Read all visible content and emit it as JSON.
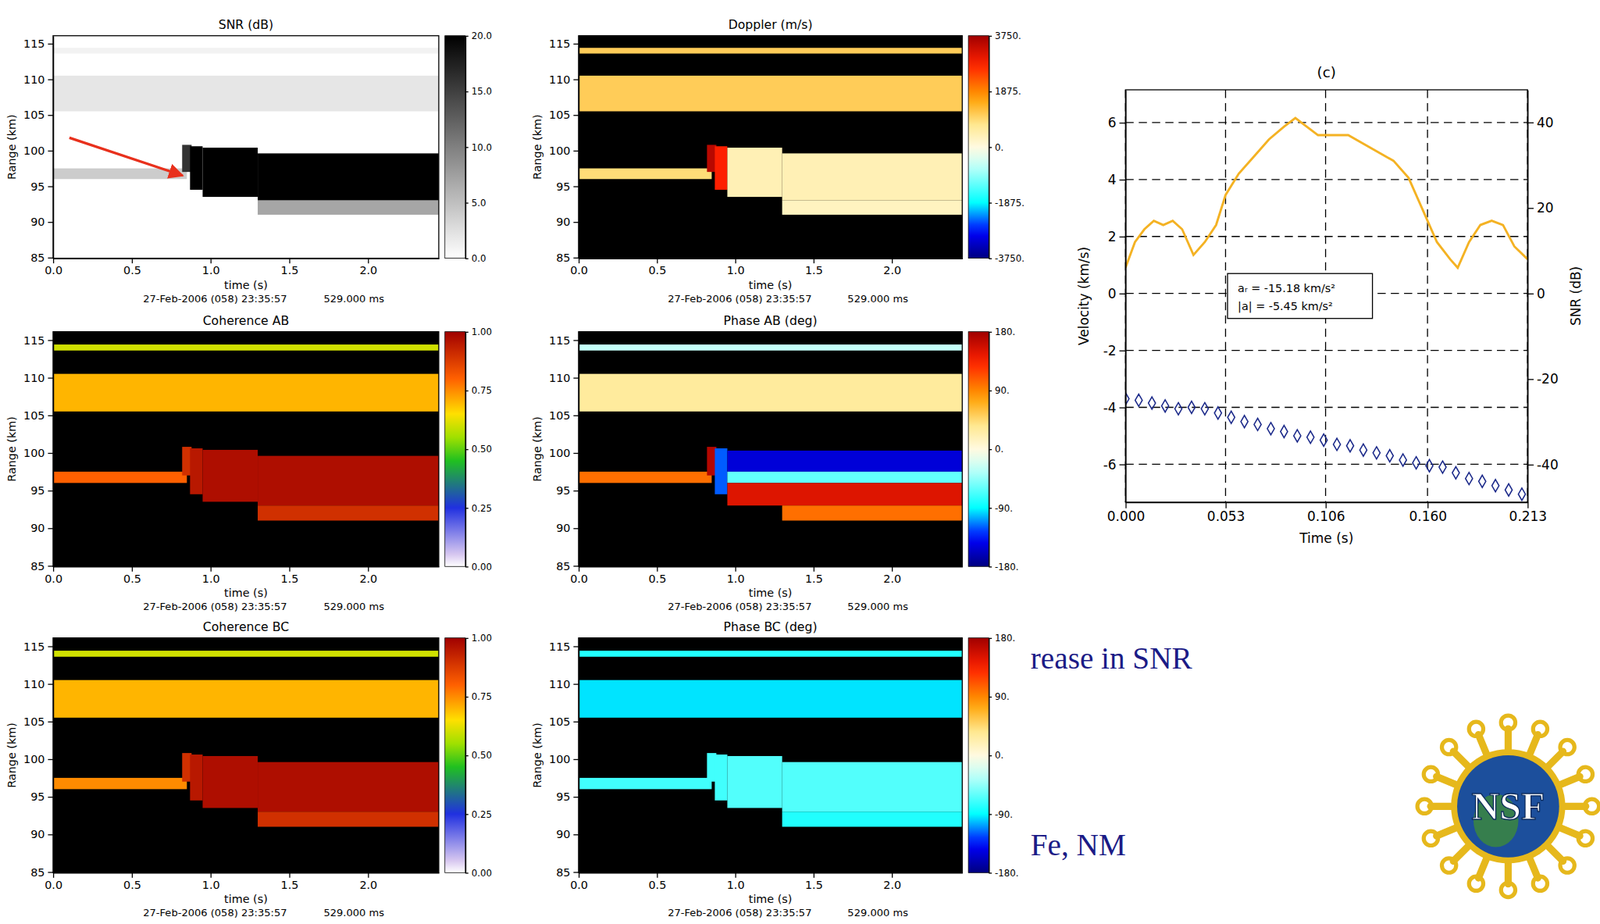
{
  "chart_data": [
    {
      "type": "heatmap",
      "title": "SNR (dB)",
      "xlabel": "time (s)",
      "ylabel": "Range (km)",
      "annotations": [
        "27-Feb-2006 (058) 23:35:57",
        "529.000 ms"
      ],
      "xlim": [
        0,
        2.45
      ],
      "ylim": [
        84.9,
        116.1
      ],
      "xticks": [
        {
          "value": 0,
          "label": "0.0"
        },
        0.5,
        {
          "value": 1,
          "label": "1.0"
        },
        1.5,
        {
          "value": 2,
          "label": "2.0"
        }
      ],
      "yticks": [
        85,
        90,
        95,
        100,
        105,
        110,
        115
      ],
      "color": "grayscale",
      "colorbar": {
        "range": [
          0,
          20
        ],
        "ticks": [
          {
            "value": 20,
            "label": "20.0"
          },
          {
            "value": 15,
            "label": "15.0"
          },
          {
            "value": 10,
            "label": "10.0"
          },
          {
            "value": 5,
            "label": "5.0"
          },
          {
            "value": 0,
            "label": "0.0"
          }
        ]
      },
      "cells": [
        {
          "x": [
            0,
            0.85
          ],
          "y": [
            96,
            97.5
          ],
          "value": 4
        },
        {
          "x": [
            0,
            2.45
          ],
          "y": [
            105.5,
            110.5
          ],
          "value": 2
        },
        {
          "x": [
            0,
            2.45
          ],
          "y": [
            113.6,
            114.4
          ],
          "value": 1
        },
        {
          "x": [
            0.82,
            0.88
          ],
          "y": [
            97,
            100.8
          ],
          "value": 16
        },
        {
          "x": [
            0.87,
            0.95
          ],
          "y": [
            94.5,
            100.6
          ],
          "value": 20
        },
        {
          "x": [
            0.95,
            1.3
          ],
          "y": [
            93.5,
            100.4
          ],
          "value": 20
        },
        {
          "x": [
            1.3,
            2.45
          ],
          "y": [
            93,
            99.6
          ],
          "value": 20
        },
        {
          "x": [
            1.3,
            2.45
          ],
          "y": [
            91,
            93
          ],
          "value": 7
        }
      ]
    },
    {
      "type": "heatmap",
      "title": "Doppler (m/s)",
      "xlabel": "time (s)",
      "ylabel": "Range (km)",
      "annotations": [
        "27-Feb-2006 (058) 23:35:57",
        "529.000 ms"
      ],
      "xlim": [
        0,
        2.45
      ],
      "ylim": [
        84.9,
        116.1
      ],
      "xticks": [
        {
          "value": 0,
          "label": "0.0"
        },
        0.5,
        {
          "value": 1,
          "label": "1.0"
        },
        1.5,
        {
          "value": 2,
          "label": "2.0"
        }
      ],
      "yticks": [
        85,
        90,
        95,
        100,
        105,
        110,
        115
      ],
      "color": "bluered",
      "colorbar": {
        "range": [
          -3750,
          3750
        ],
        "ticks": [
          {
            "value": 3750,
            "label": "3750."
          },
          {
            "value": 1875,
            "label": "1875."
          },
          {
            "value": 0,
            "label": "0."
          },
          {
            "value": -1875,
            "label": "-1875."
          },
          {
            "value": -3750,
            "label": "-3750."
          }
        ]
      },
      "cells": [
        {
          "x": [
            0,
            0.85
          ],
          "y": [
            96,
            97.5
          ],
          "value": 900
        },
        {
          "x": [
            0,
            2.45
          ],
          "y": [
            105.5,
            110.5
          ],
          "value": 1100
        },
        {
          "x": [
            0,
            2.45
          ],
          "y": [
            113.6,
            114.4
          ],
          "value": 1100
        },
        {
          "x": [
            0.82,
            0.88
          ],
          "y": [
            97,
            100.8
          ],
          "value": 3500
        },
        {
          "x": [
            0.87,
            0.95
          ],
          "y": [
            94.5,
            100.6
          ],
          "value": 2800
        },
        {
          "x": [
            0.95,
            1.3
          ],
          "y": [
            93.5,
            100.4
          ],
          "value": 400
        },
        {
          "x": [
            1.3,
            2.45
          ],
          "y": [
            93,
            99.6
          ],
          "value": 400
        },
        {
          "x": [
            1.3,
            2.45
          ],
          "y": [
            91,
            93
          ],
          "value": 300
        }
      ]
    },
    {
      "type": "heatmap",
      "title": "Coherence AB",
      "xlabel": "time (s)",
      "ylabel": "Range (km)",
      "annotations": [
        "27-Feb-2006 (058) 23:35:57",
        "529.000 ms"
      ],
      "xlim": [
        0,
        2.45
      ],
      "ylim": [
        84.9,
        116.1
      ],
      "xticks": [
        {
          "value": 0,
          "label": "0.0"
        },
        0.5,
        {
          "value": 1,
          "label": "1.0"
        },
        1.5,
        {
          "value": 2,
          "label": "2.0"
        }
      ],
      "yticks": [
        85,
        90,
        95,
        100,
        105,
        110,
        115
      ],
      "color": "rainbow",
      "colorbar": {
        "range": [
          0,
          1
        ],
        "ticks": [
          {
            "value": 1,
            "label": "1.00"
          },
          0.75,
          {
            "value": 0.5,
            "label": "0.50"
          },
          0.25,
          {
            "value": 0,
            "label": "0.00"
          }
        ]
      },
      "cells": [
        {
          "x": [
            0,
            0.85
          ],
          "y": [
            96,
            97.5
          ],
          "value": 0.8
        },
        {
          "x": [
            0,
            2.45
          ],
          "y": [
            105.5,
            110.5
          ],
          "value": 0.7
        },
        {
          "x": [
            0,
            2.45
          ],
          "y": [
            113.6,
            114.4
          ],
          "value": 0.6
        },
        {
          "x": [
            0.82,
            0.88
          ],
          "y": [
            97,
            100.8
          ],
          "value": 0.9
        },
        {
          "x": [
            0.87,
            0.95
          ],
          "y": [
            94.5,
            100.6
          ],
          "value": 0.95
        },
        {
          "x": [
            0.95,
            1.3
          ],
          "y": [
            93.5,
            100.4
          ],
          "value": 0.97
        },
        {
          "x": [
            1.3,
            2.45
          ],
          "y": [
            93,
            99.6
          ],
          "value": 0.97
        },
        {
          "x": [
            1.3,
            2.45
          ],
          "y": [
            91,
            93
          ],
          "value": 0.9
        }
      ]
    },
    {
      "type": "heatmap",
      "title": "Phase AB (deg)",
      "xlabel": "time (s)",
      "ylabel": "Range (km)",
      "annotations": [
        "27-Feb-2006 (058) 23:35:57",
        "529.000 ms"
      ],
      "xlim": [
        0,
        2.45
      ],
      "ylim": [
        84.9,
        116.1
      ],
      "xticks": [
        {
          "value": 0,
          "label": "0.0"
        },
        0.5,
        {
          "value": 1,
          "label": "1.0"
        },
        1.5,
        {
          "value": 2,
          "label": "2.0"
        }
      ],
      "yticks": [
        85,
        90,
        95,
        100,
        105,
        110,
        115
      ],
      "color": "bluered",
      "colorbar": {
        "range": [
          -180,
          180
        ],
        "ticks": [
          {
            "value": 180,
            "label": "180."
          },
          {
            "value": 90,
            "label": "90."
          },
          {
            "value": 0,
            "label": "0."
          },
          {
            "value": -90,
            "label": "-90."
          },
          {
            "value": -180,
            "label": "-180."
          }
        ]
      },
      "cells": [
        {
          "x": [
            0,
            0.85
          ],
          "y": [
            96,
            97.5
          ],
          "value": 100
        },
        {
          "x": [
            0,
            2.45
          ],
          "y": [
            105.5,
            110.5
          ],
          "value": 30
        },
        {
          "x": [
            0,
            2.45
          ],
          "y": [
            113.6,
            114.4
          ],
          "value": -30
        },
        {
          "x": [
            0.82,
            0.88
          ],
          "y": [
            97,
            100.8
          ],
          "value": 170
        },
        {
          "x": [
            0.87,
            0.95
          ],
          "y": [
            94.5,
            100.6
          ],
          "value": -120
        },
        {
          "x": [
            0.95,
            2.45
          ],
          "y": [
            97.5,
            100.3
          ],
          "value": -150
        },
        {
          "x": [
            0.95,
            2.45
          ],
          "y": [
            96,
            97.5
          ],
          "value": -60
        },
        {
          "x": [
            0.95,
            2.45
          ],
          "y": [
            93,
            96
          ],
          "value": 150
        },
        {
          "x": [
            1.3,
            2.45
          ],
          "y": [
            91,
            93
          ],
          "value": 100
        }
      ]
    },
    {
      "type": "heatmap",
      "title": "Coherence BC",
      "xlabel": "time (s)",
      "ylabel": "Range (km)",
      "annotations": [
        "27-Feb-2006 (058) 23:35:57",
        "529.000 ms"
      ],
      "xlim": [
        0,
        2.45
      ],
      "ylim": [
        84.9,
        116.1
      ],
      "xticks": [
        {
          "value": 0,
          "label": "0.0"
        },
        0.5,
        {
          "value": 1,
          "label": "1.0"
        },
        1.5,
        {
          "value": 2,
          "label": "2.0"
        }
      ],
      "yticks": [
        85,
        90,
        95,
        100,
        105,
        110,
        115
      ],
      "color": "rainbow",
      "colorbar": {
        "range": [
          0,
          1
        ],
        "ticks": [
          {
            "value": 1,
            "label": "1.00"
          },
          0.75,
          {
            "value": 0.5,
            "label": "0.50"
          },
          0.25,
          {
            "value": 0,
            "label": "0.00"
          }
        ]
      },
      "cells": [
        {
          "x": [
            0,
            0.85
          ],
          "y": [
            96,
            97.5
          ],
          "value": 0.75
        },
        {
          "x": [
            0,
            2.45
          ],
          "y": [
            105.5,
            110.5
          ],
          "value": 0.7
        },
        {
          "x": [
            0,
            2.45
          ],
          "y": [
            113.6,
            114.4
          ],
          "value": 0.6
        },
        {
          "x": [
            0.82,
            0.88
          ],
          "y": [
            97,
            100.8
          ],
          "value": 0.9
        },
        {
          "x": [
            0.87,
            0.95
          ],
          "y": [
            94.5,
            100.6
          ],
          "value": 0.95
        },
        {
          "x": [
            0.95,
            1.3
          ],
          "y": [
            93.5,
            100.4
          ],
          "value": 0.97
        },
        {
          "x": [
            1.3,
            2.45
          ],
          "y": [
            93,
            99.6
          ],
          "value": 0.97
        },
        {
          "x": [
            1.3,
            2.45
          ],
          "y": [
            91,
            93
          ],
          "value": 0.9
        }
      ]
    },
    {
      "type": "heatmap",
      "title": "Phase BC (deg)",
      "xlabel": "time (s)",
      "ylabel": "Range (km)",
      "annotations": [
        "27-Feb-2006 (058) 23:35:57",
        "529.000 ms"
      ],
      "xlim": [
        0,
        2.45
      ],
      "ylim": [
        84.9,
        116.1
      ],
      "xticks": [
        {
          "value": 0,
          "label": "0.0"
        },
        0.5,
        {
          "value": 1,
          "label": "1.0"
        },
        1.5,
        {
          "value": 2,
          "label": "2.0"
        }
      ],
      "yticks": [
        85,
        90,
        95,
        100,
        105,
        110,
        115
      ],
      "color": "bluered",
      "colorbar": {
        "range": [
          -180,
          180
        ],
        "ticks": [
          {
            "value": 180,
            "label": "180."
          },
          {
            "value": 90,
            "label": "90."
          },
          {
            "value": 0,
            "label": "0."
          },
          {
            "value": -90,
            "label": "-90."
          },
          {
            "value": -180,
            "label": "-180."
          }
        ]
      },
      "cells": [
        {
          "x": [
            0,
            0.85
          ],
          "y": [
            96,
            97.5
          ],
          "value": -70
        },
        {
          "x": [
            0,
            2.45
          ],
          "y": [
            105.5,
            110.5
          ],
          "value": -95
        },
        {
          "x": [
            0,
            2.45
          ],
          "y": [
            113.6,
            114.4
          ],
          "value": -80
        },
        {
          "x": [
            0.82,
            0.88
          ],
          "y": [
            97,
            100.8
          ],
          "value": -70
        },
        {
          "x": [
            0.87,
            0.95
          ],
          "y": [
            94.5,
            100.6
          ],
          "value": -70
        },
        {
          "x": [
            0.95,
            1.3
          ],
          "y": [
            93.5,
            100.4
          ],
          "value": -65
        },
        {
          "x": [
            1.3,
            2.45
          ],
          "y": [
            93,
            99.6
          ],
          "value": -65
        },
        {
          "x": [
            1.3,
            2.45
          ],
          "y": [
            91,
            93
          ],
          "value": -80
        }
      ]
    },
    {
      "type": "line",
      "title": "(c)",
      "xlabel": "Time (s)",
      "ylabel": "Velocity (km/s)",
      "y2label": "SNR (dB)",
      "annotations": [
        "aᵣ = -15.18 km/s²",
        "|a| = -5.45 km/s²"
      ],
      "xlim": [
        0,
        0.213
      ],
      "ylim": [
        -7.33,
        7.15
      ],
      "y2lim": [
        -48.8,
        47.6
      ],
      "xticks": [
        {
          "value": 0,
          "label": "0.000"
        },
        0.053,
        0.106,
        {
          "value": 0.16,
          "label": "0.160"
        },
        0.213
      ],
      "yticks": [
        -6,
        -4,
        -2,
        0,
        2,
        4,
        6
      ],
      "y2ticks": [
        -40,
        -20,
        0,
        20,
        40
      ],
      "grid": true,
      "series": [
        {
          "type": "scatter",
          "marker": "diamond",
          "color": "#1c2a8a",
          "x": [
            0,
            0.007,
            0.014,
            0.021,
            0.028,
            0.035,
            0.042,
            0.049,
            0.056,
            0.063,
            0.07,
            0.077,
            0.084,
            0.091,
            0.098,
            0.105,
            0.112,
            0.119,
            0.126,
            0.133,
            0.14,
            0.147,
            0.154,
            0.161,
            0.168,
            0.175,
            0.182,
            0.189,
            0.196,
            0.203,
            0.21
          ],
          "values": [
            -3.7,
            -3.75,
            -3.85,
            -3.95,
            -4.05,
            -4.0,
            -4.05,
            -4.2,
            -4.35,
            -4.5,
            -4.6,
            -4.75,
            -4.85,
            -5.0,
            -5.05,
            -5.15,
            -5.3,
            -5.35,
            -5.5,
            -5.6,
            -5.7,
            -5.85,
            -5.95,
            -6.05,
            -6.1,
            -6.3,
            -6.5,
            -6.6,
            -6.75,
            -6.9,
            -7.05
          ]
        },
        {
          "type": "line",
          "axis": "y2",
          "color": "#f4b223",
          "x": [
            0,
            0.005,
            0.01,
            0.015,
            0.02,
            0.025,
            0.03,
            0.036,
            0.042,
            0.048,
            0.053,
            0.06,
            0.068,
            0.076,
            0.084,
            0.09,
            0.096,
            0.102,
            0.11,
            0.118,
            0.126,
            0.134,
            0.142,
            0.15,
            0.158,
            0.165,
            0.172,
            0.176,
            0.182,
            0.188,
            0.194,
            0.2,
            0.206,
            0.213
          ],
          "values": [
            6,
            12,
            15,
            17,
            16,
            17,
            15,
            9,
            12,
            16,
            23,
            28,
            32,
            36,
            39,
            41,
            39,
            37,
            37,
            37,
            35,
            33,
            31,
            27,
            19,
            12,
            8,
            6,
            12,
            16,
            17,
            16,
            11,
            8
          ]
        }
      ]
    }
  ],
  "page": {
    "fragments": [
      "rease in SNR",
      "Fe, NM"
    ],
    "logo": "NSF"
  }
}
